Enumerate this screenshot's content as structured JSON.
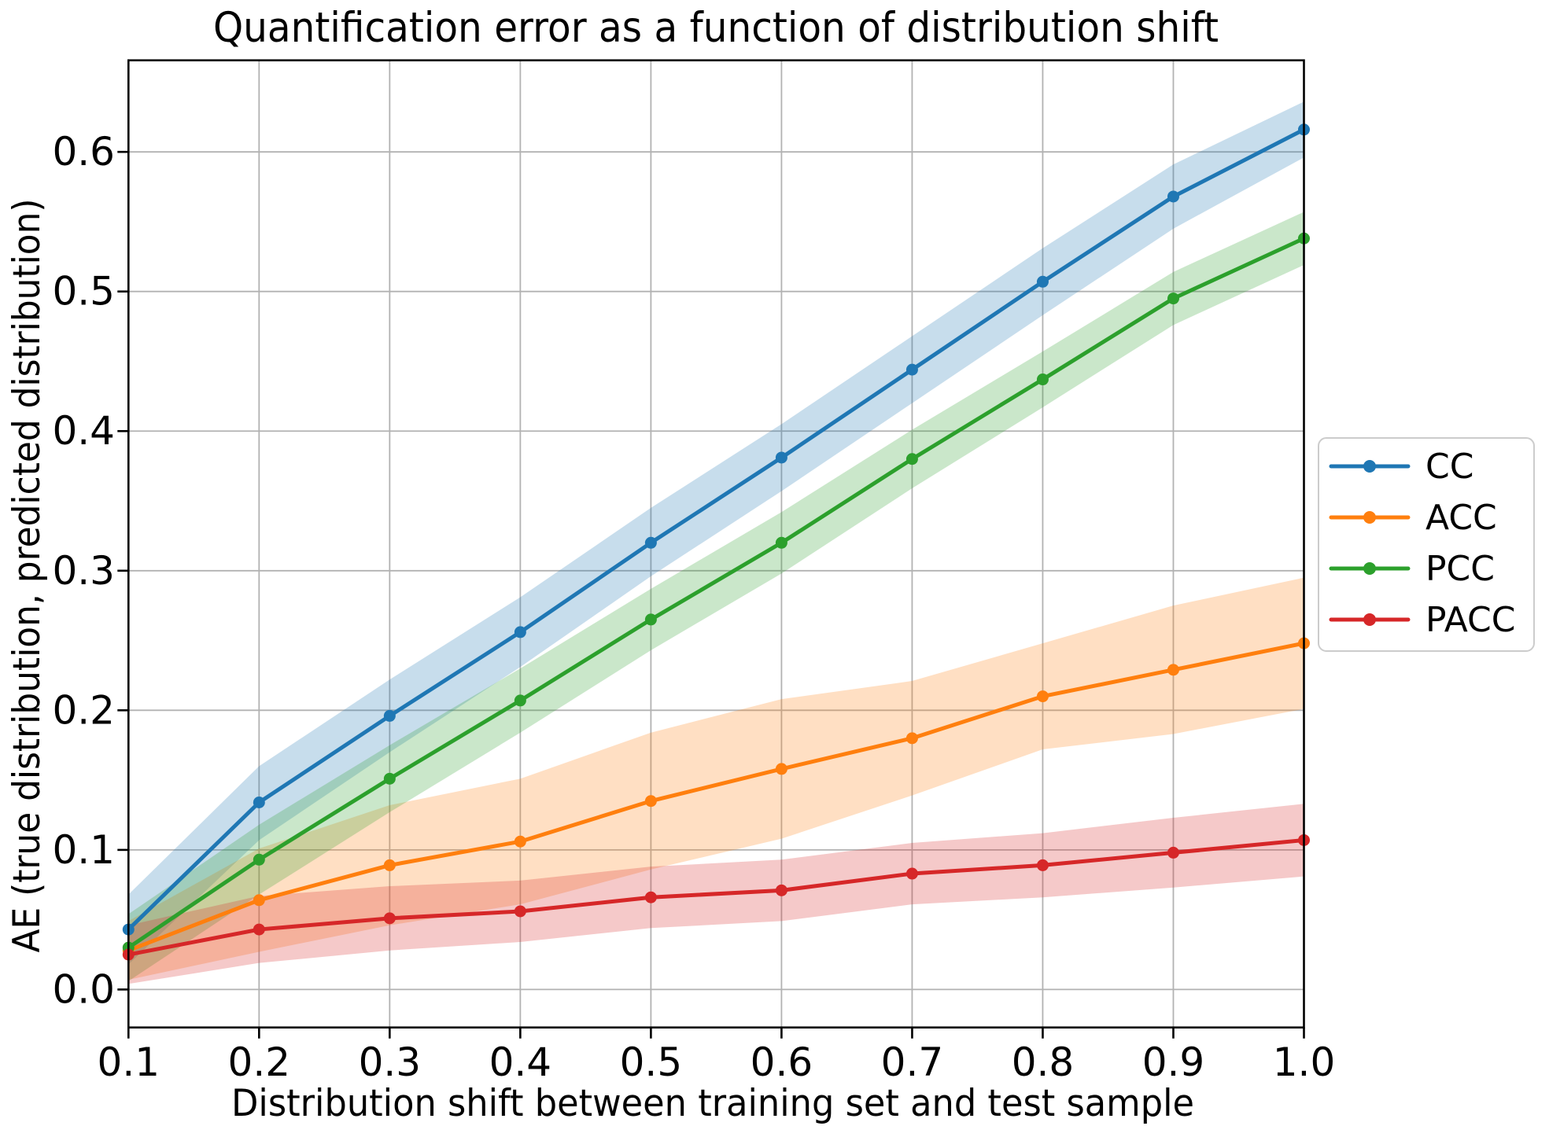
{
  "figure": {
    "background": "#ffffff",
    "grid_color": "#b2b2b2",
    "spine_color": "#000000"
  },
  "chart_data": {
    "type": "line",
    "title": "Quantification error as a function of distribution shift",
    "xlabel": "Distribution shift between training set and test sample",
    "ylabel": "AE (true distribution, predicted distribution)",
    "x": [
      0.1,
      0.2,
      0.3,
      0.4,
      0.5,
      0.6,
      0.7,
      0.8,
      0.9,
      1.0
    ],
    "xtick_labels": [
      "0.1",
      "0.2",
      "0.3",
      "0.4",
      "0.5",
      "0.6",
      "0.7",
      "0.8",
      "0.9",
      "1.0"
    ],
    "ytick_labels": [
      "0.0",
      "0.1",
      "0.2",
      "0.3",
      "0.4",
      "0.5",
      "0.6"
    ],
    "xlim": [
      0.1,
      1.0
    ],
    "ylim": [
      -0.0272,
      0.6656
    ],
    "grid": true,
    "legend_position": "outside-right",
    "band_opacity": 0.25,
    "series": [
      {
        "name": "CC",
        "color": "#1f77b4",
        "values": [
          0.043,
          0.134,
          0.196,
          0.256,
          0.32,
          0.381,
          0.444,
          0.507,
          0.568,
          0.616
        ],
        "band_lower": [
          0.018,
          0.107,
          0.17,
          0.231,
          0.296,
          0.357,
          0.42,
          0.483,
          0.545,
          0.596
        ],
        "band_upper": [
          0.068,
          0.16,
          0.222,
          0.281,
          0.345,
          0.405,
          0.468,
          0.531,
          0.591,
          0.636
        ]
      },
      {
        "name": "ACC",
        "color": "#ff7f0e",
        "values": [
          0.028,
          0.064,
          0.089,
          0.106,
          0.135,
          0.158,
          0.18,
          0.21,
          0.229,
          0.248
        ],
        "band_lower": [
          0.007,
          0.027,
          0.046,
          0.061,
          0.086,
          0.108,
          0.139,
          0.172,
          0.183,
          0.201
        ],
        "band_upper": [
          0.049,
          0.101,
          0.132,
          0.151,
          0.184,
          0.208,
          0.221,
          0.248,
          0.275,
          0.295
        ]
      },
      {
        "name": "PCC",
        "color": "#2ca02c",
        "values": [
          0.03,
          0.093,
          0.151,
          0.207,
          0.265,
          0.32,
          0.38,
          0.437,
          0.495,
          0.538
        ],
        "band_lower": [
          0.006,
          0.068,
          0.127,
          0.184,
          0.243,
          0.298,
          0.359,
          0.417,
          0.476,
          0.519
        ],
        "band_upper": [
          0.054,
          0.118,
          0.175,
          0.23,
          0.287,
          0.342,
          0.401,
          0.457,
          0.514,
          0.557
        ]
      },
      {
        "name": "PACC",
        "color": "#d62728",
        "values": [
          0.025,
          0.043,
          0.051,
          0.056,
          0.066,
          0.071,
          0.083,
          0.089,
          0.098,
          0.107
        ],
        "band_lower": [
          0.004,
          0.019,
          0.028,
          0.034,
          0.044,
          0.049,
          0.061,
          0.066,
          0.073,
          0.081
        ],
        "band_upper": [
          0.046,
          0.067,
          0.074,
          0.078,
          0.088,
          0.093,
          0.105,
          0.112,
          0.123,
          0.133
        ]
      }
    ]
  }
}
